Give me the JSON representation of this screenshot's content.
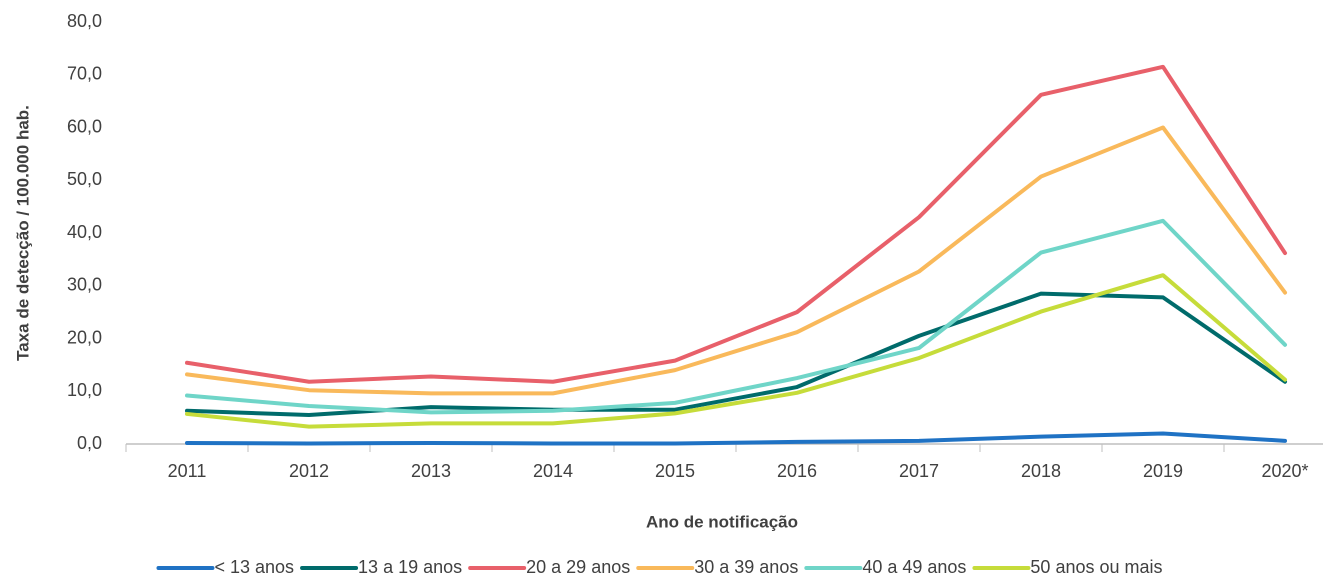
{
  "chart_data": {
    "type": "line",
    "ylabel": "Taxa de detecção / 100.000 hab.",
    "xlabel": "Ano de notificação",
    "categories": [
      "2011",
      "2012",
      "2013",
      "2014",
      "2015",
      "2016",
      "2017",
      "2018",
      "2019",
      "2020*"
    ],
    "ylim": [
      0,
      80
    ],
    "yticks": [
      {
        "value": 0,
        "label": "0,0"
      },
      {
        "value": 10,
        "label": "10,0"
      },
      {
        "value": 20,
        "label": "20,0"
      },
      {
        "value": 30,
        "label": "30,0"
      },
      {
        "value": 40,
        "label": "40,0"
      },
      {
        "value": 50,
        "label": "50,0"
      },
      {
        "value": 60,
        "label": "60,0"
      },
      {
        "value": 70,
        "label": "70,0"
      },
      {
        "value": 80,
        "label": "80,0"
      }
    ],
    "grid": false,
    "legend": "bottom",
    "series": [
      {
        "name": "< 13 anos",
        "color": "#1f72c4",
        "values": [
          0.2,
          0.1,
          0.2,
          0.1,
          0.1,
          0.4,
          0.6,
          1.4,
          2.0,
          0.6
        ]
      },
      {
        "name": "13 a 19 anos",
        "color": "#006b6b",
        "values": [
          6.3,
          5.5,
          7.0,
          6.5,
          6.5,
          10.8,
          20.5,
          28.5,
          27.8,
          11.8
        ]
      },
      {
        "name": "20 a 29 anos",
        "color": "#e8606a",
        "values": [
          15.4,
          11.8,
          12.8,
          11.8,
          15.8,
          25.0,
          43.0,
          66.2,
          71.5,
          36.2
        ]
      },
      {
        "name": "30 a 39 anos",
        "color": "#f9b95b",
        "values": [
          13.2,
          10.2,
          9.6,
          9.6,
          14.0,
          21.2,
          32.7,
          50.7,
          60.0,
          28.7
        ]
      },
      {
        "name": "40 a 49 anos",
        "color": "#6fd5c8",
        "values": [
          9.2,
          7.2,
          6.0,
          6.3,
          7.8,
          12.5,
          18.2,
          36.3,
          42.3,
          18.8
        ]
      },
      {
        "name": "50 anos ou mais",
        "color": "#c6dc3a",
        "values": [
          5.7,
          3.3,
          3.9,
          3.9,
          5.8,
          9.7,
          16.3,
          25.1,
          32.0,
          12.2
        ]
      }
    ]
  }
}
